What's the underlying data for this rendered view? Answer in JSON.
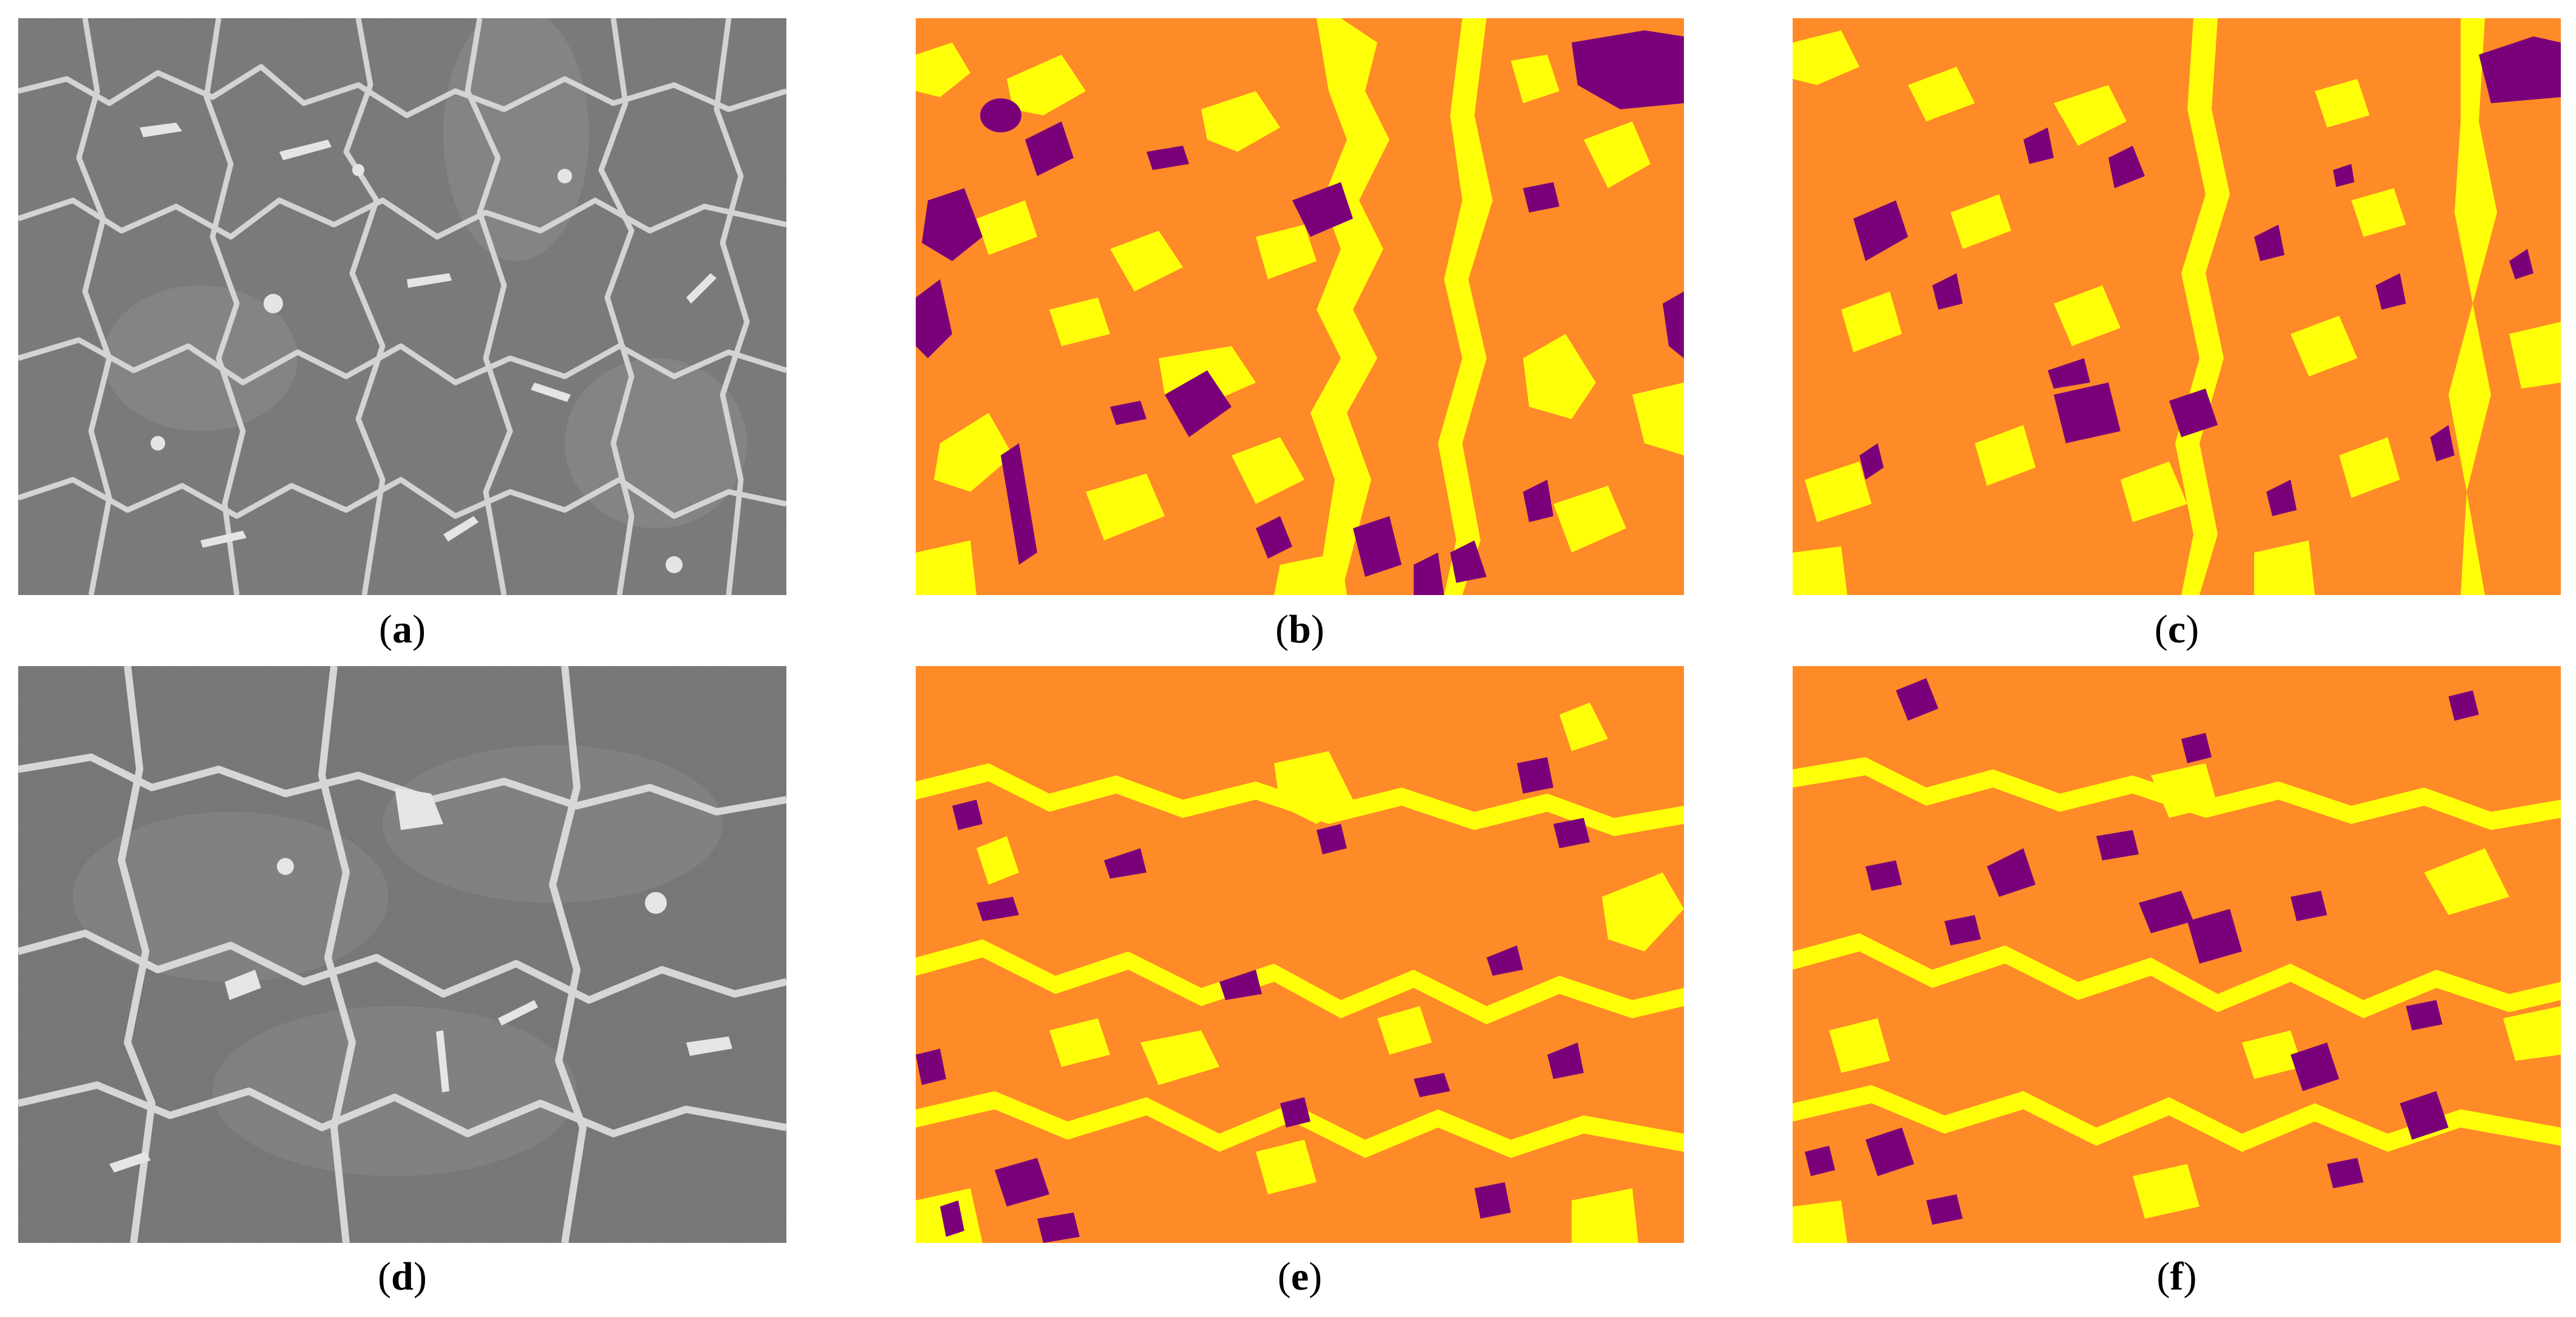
{
  "colors": {
    "sem_background": "#6e6e6e",
    "sem_bright_phase": "#e6e6e6",
    "matrix_orange": "#ff8a28",
    "phase_yellow": "#ffff0a",
    "phase_purple": "#7a007a"
  },
  "panels": [
    {
      "id": "a",
      "kind": "sem-micrograph",
      "caption": "a"
    },
    {
      "id": "b",
      "kind": "segmentation-map",
      "caption": "b"
    },
    {
      "id": "c",
      "kind": "segmentation-map",
      "caption": "c"
    },
    {
      "id": "d",
      "kind": "sem-micrograph",
      "caption": "d"
    },
    {
      "id": "e",
      "kind": "segmentation-map",
      "caption": "e"
    },
    {
      "id": "f",
      "kind": "segmentation-map",
      "caption": "f"
    }
  ]
}
